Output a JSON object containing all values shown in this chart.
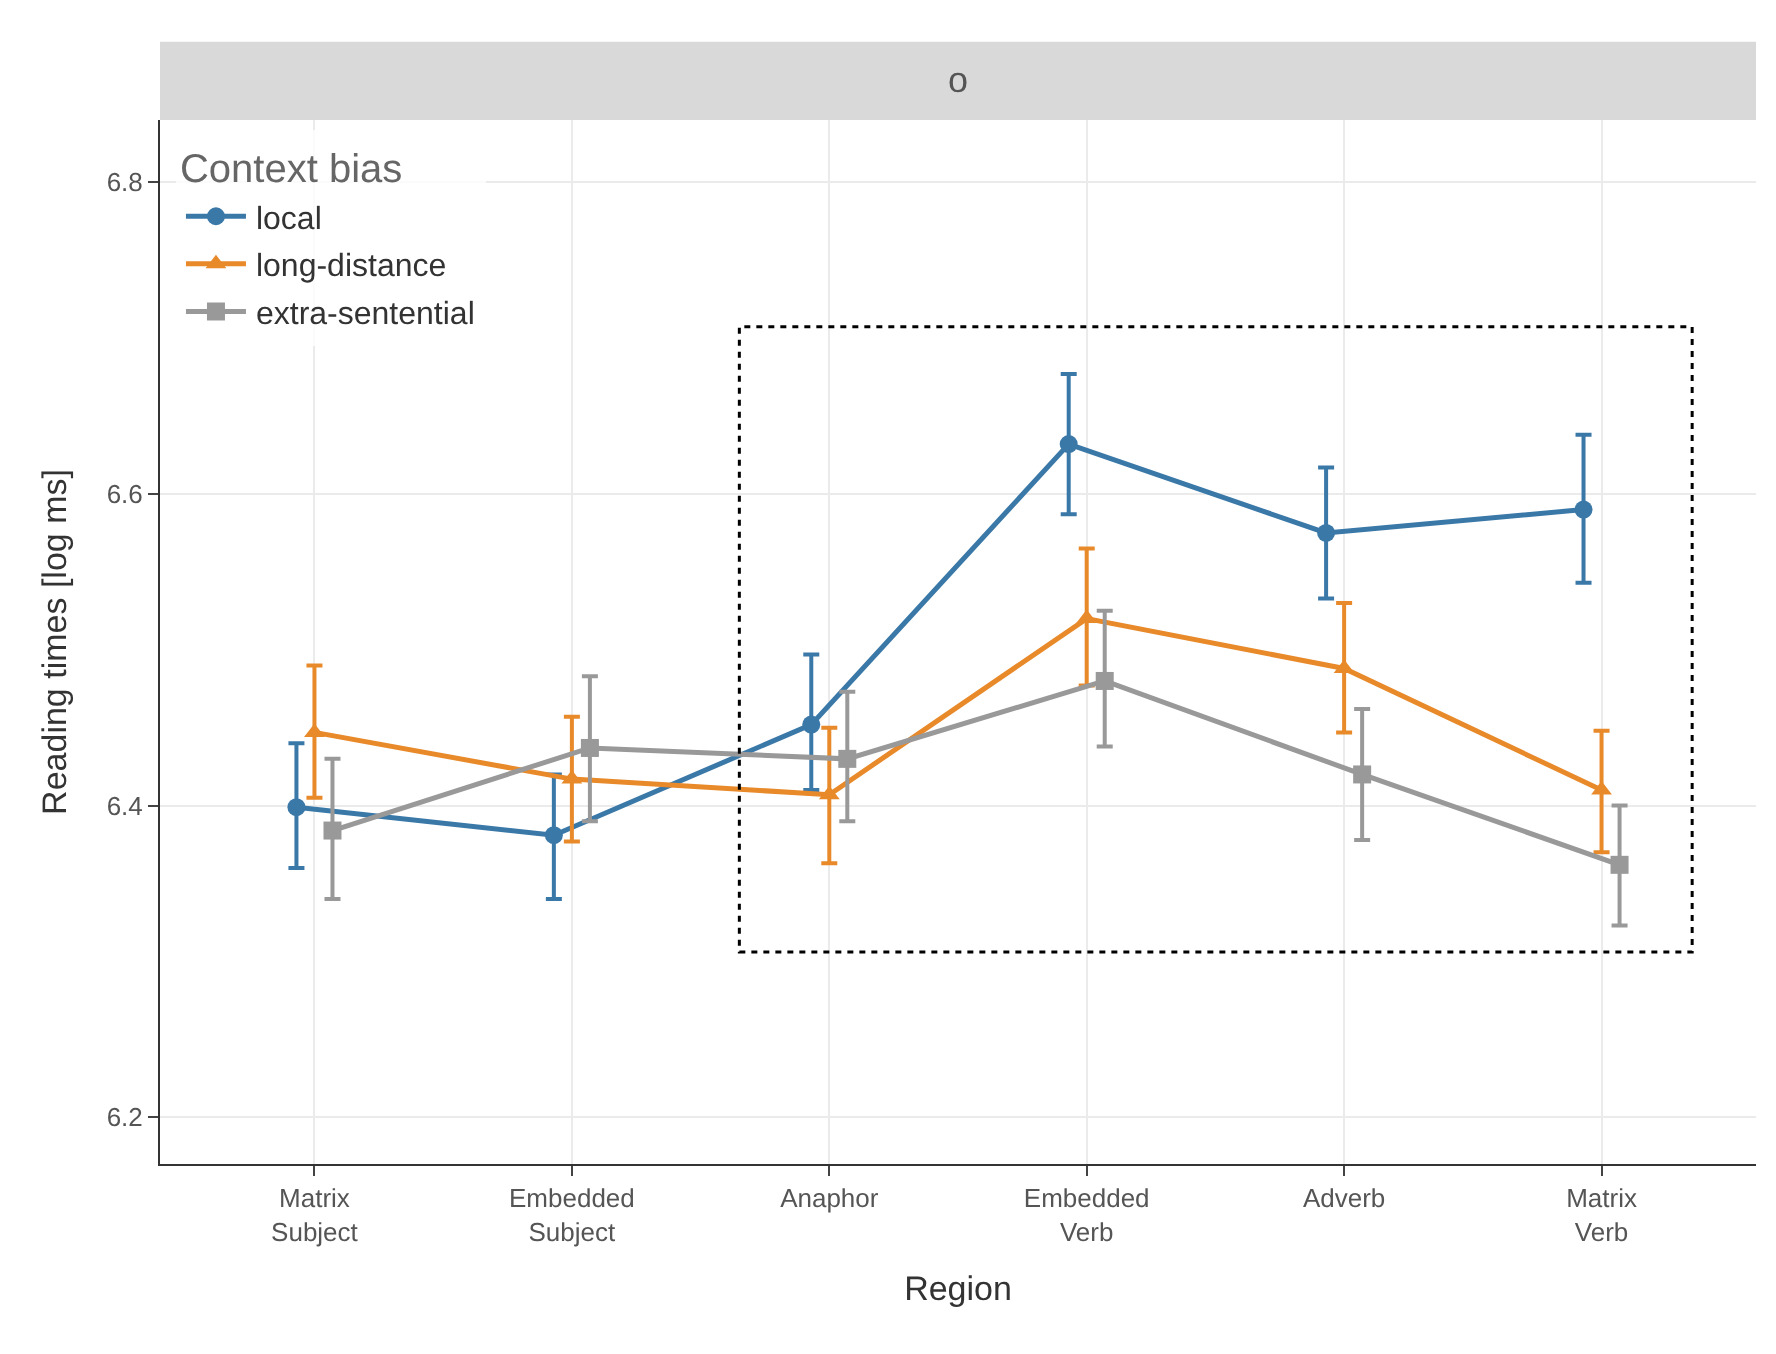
{
  "chart_data": {
    "type": "line",
    "title": "o",
    "xlabel": "Region",
    "ylabel": "Reading times [log ms]",
    "legend_title": "Context bias",
    "categories": [
      "Matrix\nSubject",
      "Embedded\nSubject",
      "Anaphor",
      "Embedded\nVerb",
      "Adverb",
      "Matrix\nVerb"
    ],
    "series": [
      {
        "name": "local",
        "color": "#3a78a8",
        "marker": "circle",
        "values": [
          6.399,
          6.381,
          6.452,
          6.632,
          6.575,
          6.59
        ],
        "errors": [
          [
            6.36,
            6.44
          ],
          [
            6.34,
            6.42
          ],
          [
            6.41,
            6.497
          ],
          [
            6.587,
            6.677
          ],
          [
            6.533,
            6.617
          ],
          [
            6.543,
            6.638
          ]
        ]
      },
      {
        "name": "long-distance",
        "color": "#e8892a",
        "marker": "triangle",
        "values": [
          6.447,
          6.417,
          6.407,
          6.52,
          6.488,
          6.41
        ],
        "errors": [
          [
            6.405,
            6.49
          ],
          [
            6.377,
            6.457
          ],
          [
            6.363,
            6.45
          ],
          [
            6.477,
            6.565
          ],
          [
            6.447,
            6.53
          ],
          [
            6.37,
            6.448
          ]
        ]
      },
      {
        "name": "extra-sentential",
        "color": "#999999",
        "marker": "square",
        "values": [
          6.384,
          6.437,
          6.43,
          6.48,
          6.42,
          6.362
        ],
        "errors": [
          [
            6.34,
            6.43
          ],
          [
            6.39,
            6.483
          ],
          [
            6.39,
            6.473
          ],
          [
            6.438,
            6.525
          ],
          [
            6.378,
            6.462
          ],
          [
            6.323,
            6.4
          ]
        ]
      }
    ],
    "ylim": [
      6.17,
      6.84
    ],
    "yticks": [
      6.2,
      6.4,
      6.6,
      6.8
    ],
    "grid": true,
    "legend": "top left",
    "line_style": "solid"
  }
}
